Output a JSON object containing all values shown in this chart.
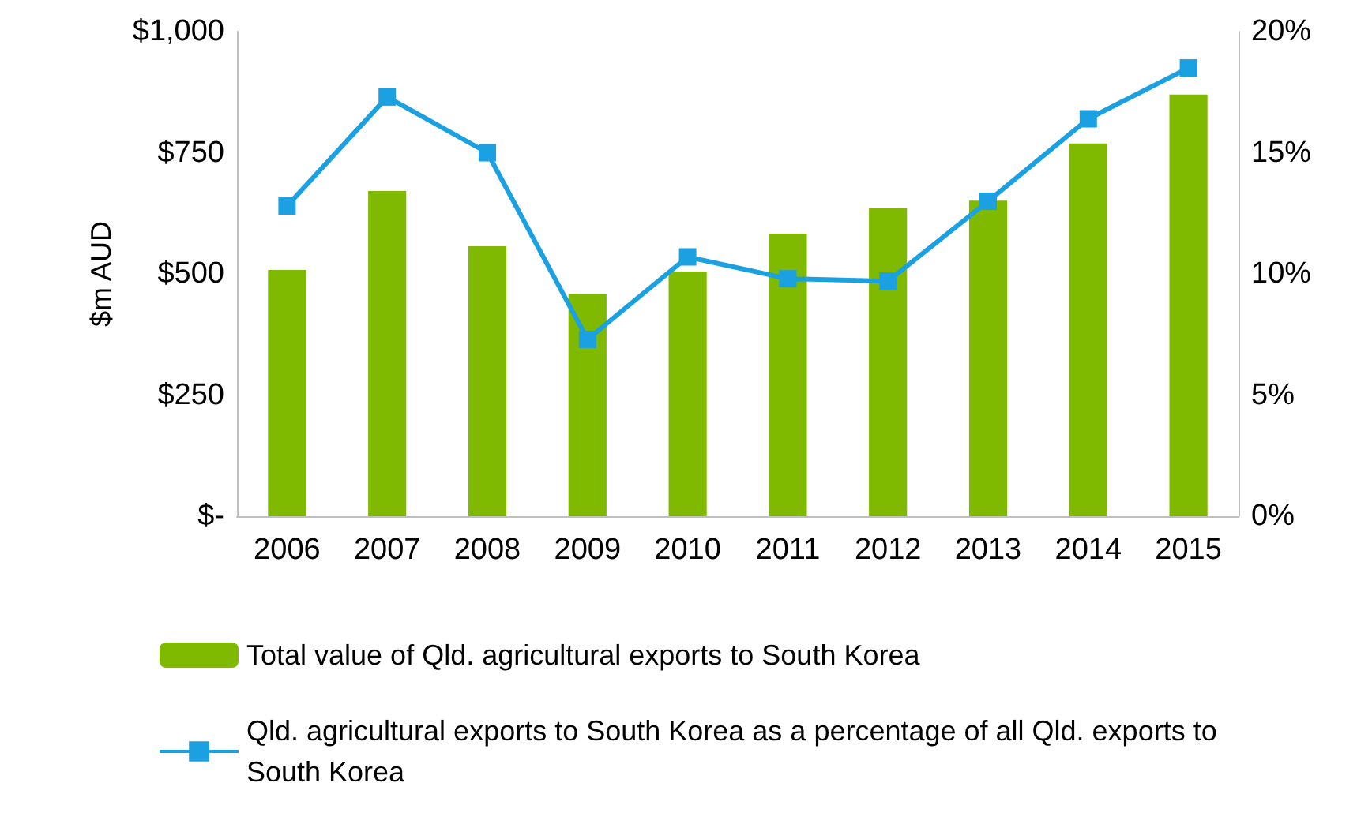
{
  "chart_data": {
    "type": "bar",
    "ylabel": "$m AUD",
    "categories": [
      "2006",
      "2007",
      "2008",
      "2009",
      "2010",
      "2011",
      "2012",
      "2013",
      "2014",
      "2015"
    ],
    "series": [
      {
        "name": "Total value of Qld. agricultural exports to South Korea",
        "color": "#7fba00",
        "values": [
          508,
          671,
          557,
          459,
          505,
          583,
          635,
          651,
          769,
          870
        ]
      },
      {
        "name": "Qld. agricultural exports to South Korea as a percentage of all Qld. exports to South Korea",
        "type": "line",
        "axis": "y2",
        "color": "#1ba1e2",
        "values": [
          12.8,
          17.3,
          15.0,
          7.3,
          10.7,
          9.8,
          9.7,
          13.0,
          16.4,
          18.5
        ]
      }
    ],
    "ylim": [
      0,
      1000
    ],
    "yticks": [
      {
        "value": 0,
        "label": "$-"
      },
      {
        "value": 250,
        "label": "$250"
      },
      {
        "value": 500,
        "label": "$500"
      },
      {
        "value": 750,
        "label": "$750"
      },
      {
        "value": 1000,
        "label": "$1,000"
      }
    ],
    "y2lim": [
      0,
      20
    ],
    "y2ticks": [
      {
        "value": 0,
        "label": "0%"
      },
      {
        "value": 5,
        "label": "5%"
      },
      {
        "value": 10,
        "label": "10%"
      },
      {
        "value": 15,
        "label": "15%"
      },
      {
        "value": 20,
        "label": "20%"
      }
    ],
    "legend": "bottom",
    "marker": "square",
    "line_style": "solid",
    "grid": false
  }
}
